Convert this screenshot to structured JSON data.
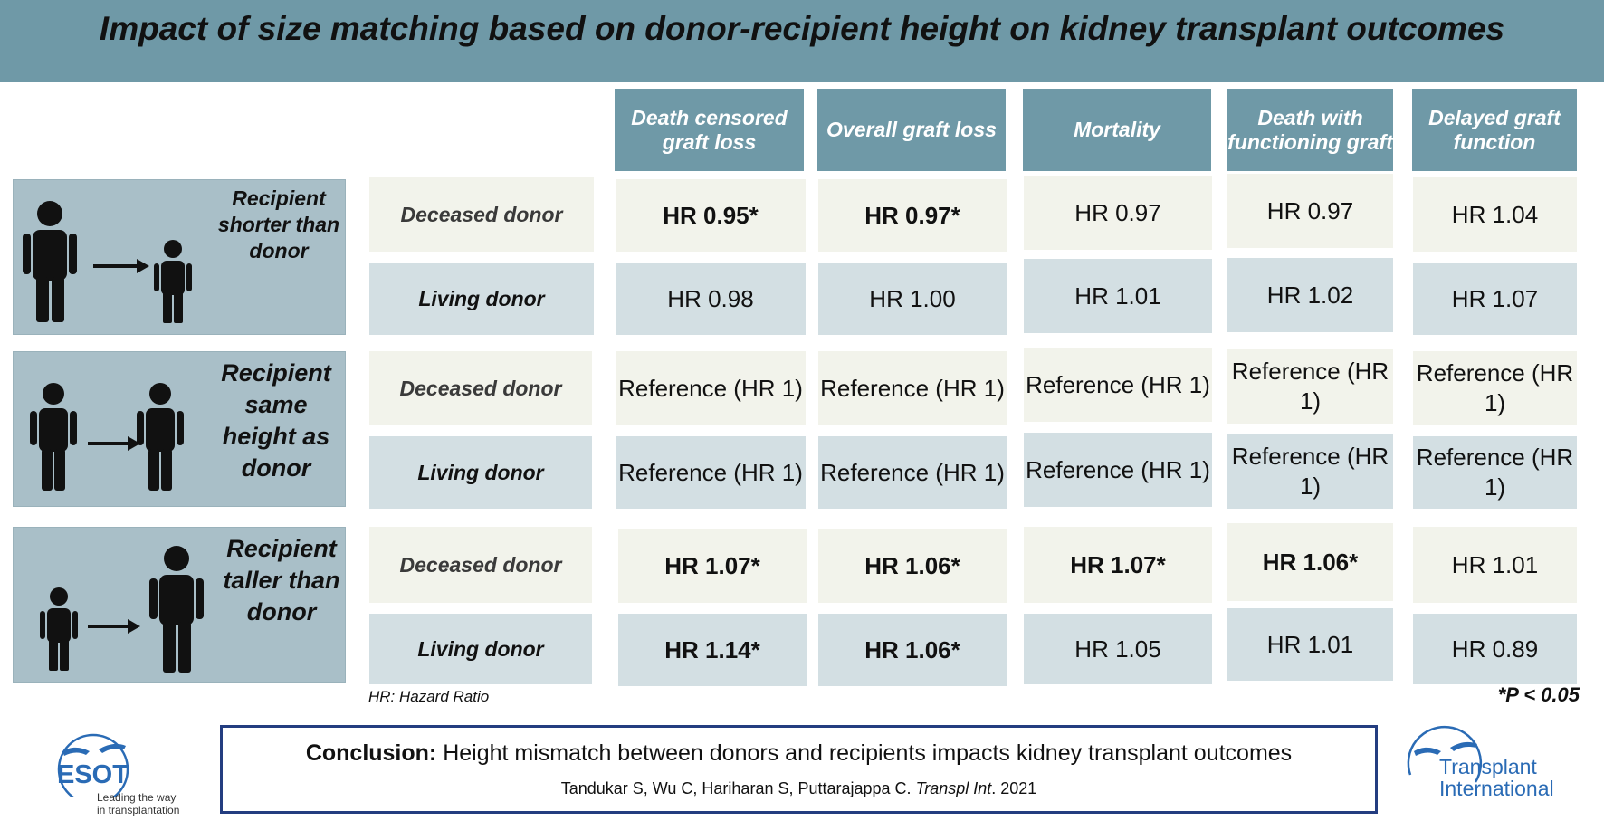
{
  "title": "Impact of size matching based on donor-recipient height on kidney transplant outcomes",
  "columns": [
    "Death censored graft loss",
    "Overall graft loss",
    "Mortality",
    "Death with functioning graft",
    "Delayed graft function"
  ],
  "groups": [
    {
      "label": "Recipient shorter than donor",
      "rows": [
        {
          "label": "Deceased donor",
          "values": [
            "HR 0.95*",
            "HR 0.97*",
            "HR 0.97",
            "HR 0.97",
            "HR 1.04"
          ],
          "significant": [
            true,
            true,
            false,
            false,
            false
          ]
        },
        {
          "label": "Living donor",
          "values": [
            "HR 0.98",
            "HR 1.00",
            "HR 1.01",
            "HR 1.02",
            "HR 1.07"
          ],
          "significant": [
            false,
            false,
            false,
            false,
            false
          ]
        }
      ]
    },
    {
      "label": "Recipient same height as donor",
      "rows": [
        {
          "label": "Deceased donor",
          "values": [
            "Reference (HR 1)",
            "Reference (HR 1)",
            "Reference (HR 1)",
            "Reference (HR 1)",
            "Reference (HR 1)"
          ],
          "significant": [
            false,
            false,
            false,
            false,
            false
          ]
        },
        {
          "label": "Living donor",
          "values": [
            "Reference (HR 1)",
            "Reference (HR 1)",
            "Reference (HR 1)",
            "Reference (HR 1)",
            "Reference (HR 1)"
          ],
          "significant": [
            false,
            false,
            false,
            false,
            false
          ]
        }
      ]
    },
    {
      "label": "Recipient taller than donor",
      "rows": [
        {
          "label": "Deceased donor",
          "values": [
            "HR 1.07*",
            "HR 1.06*",
            "HR 1.07*",
            "HR 1.06*",
            "HR 1.01"
          ],
          "significant": [
            true,
            true,
            true,
            true,
            false
          ]
        },
        {
          "label": "Living donor",
          "values": [
            "HR 1.14*",
            "HR 1.06*",
            "HR 1.05",
            "HR 1.01",
            "HR 0.89"
          ],
          "significant": [
            true,
            true,
            false,
            false,
            false
          ]
        }
      ]
    }
  ],
  "footnote_hr": "HR: Hazard Ratio",
  "footnote_p": "*P < 0.05",
  "conclusion": {
    "label": "Conclusion:",
    "text": " Height mismatch between donors and recipients impacts kidney transplant outcomes"
  },
  "citation": {
    "authors": "Tandukar S, Wu C, Hariharan S, Puttarajappa C. ",
    "journal": "Transpl Int",
    "year": ". 2021"
  },
  "logos": {
    "esot": {
      "name": "ESOT",
      "tagline_1": "Leading the way",
      "tagline_2": "in transplantation"
    },
    "ti": {
      "line1": "Transplant",
      "line2": "International"
    }
  },
  "colors": {
    "header": "#6f99a7",
    "panel": "#a9bfc8",
    "cream": "#f2f3eb",
    "blue": "#d3dfe3",
    "navy": "#233d80",
    "logo_blue": "#2a6bb5"
  }
}
